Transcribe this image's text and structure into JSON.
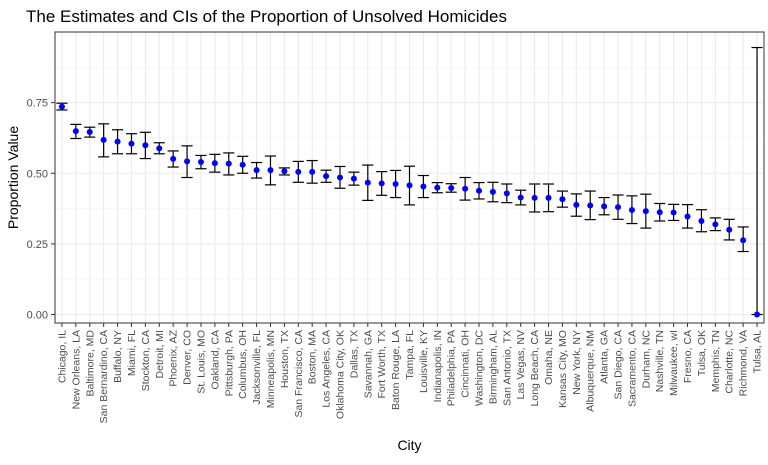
{
  "chart_data": {
    "type": "scatter",
    "title": "The Estimates and CIs of the Proportion of Unsolved Homicides",
    "xlabel": "City",
    "ylabel": "Proportion Value",
    "ylim": [
      -0.03,
      1.0
    ],
    "y_ticks": [
      0.0,
      0.25,
      0.5,
      0.75
    ],
    "y_tick_labels": [
      "0.00",
      "0.25",
      "0.50",
      "0.75"
    ],
    "grid": true,
    "legend": "none",
    "point_color": "#0000ff",
    "errorbar_color": "#000000",
    "categories": [
      "Chicago, IL",
      "New Orleans, LA",
      "Baltimore, MD",
      "San Bernardino, CA",
      "Buffalo, NY",
      "Miami, FL",
      "Stockton, CA",
      "Detroit, MI",
      "Phoenix, AZ",
      "Denver, CO",
      "St. Louis, MO",
      "Oakland, CA",
      "Pittsburgh, PA",
      "Columbus, OH",
      "Jacksonville, FL",
      "Minneapolis, MN",
      "Houston, TX",
      "San Francisco, CA",
      "Boston, MA",
      "Los Angeles, CA",
      "Oklahoma City, OK",
      "Dallas, TX",
      "Savannah, GA",
      "Fort Worth, TX",
      "Baton Rouge, LA",
      "Tampa, FL",
      "Louisville, KY",
      "Indianapolis, IN",
      "Philadelphia, PA",
      "Cincinnati, OH",
      "Washington, DC",
      "Birmingham, AL",
      "San Antonio, TX",
      "Las Vegas, NV",
      "Long Beach, CA",
      "Omaha, NE",
      "Kansas City, MO",
      "New York, NY",
      "Albuquerque, NM",
      "Atlanta, GA",
      "San Diego, CA",
      "Sacramento, CA",
      "Durham, NC",
      "Nashville, TN",
      "Milwaukee, wI",
      "Fresno, CA",
      "Tulsa, OK",
      "Memphis, TN",
      "Charlotte, NC",
      "Richmond, VA",
      "Tulsa, AL"
    ],
    "estimate": [
      0.736,
      0.649,
      0.646,
      0.618,
      0.612,
      0.605,
      0.599,
      0.588,
      0.551,
      0.542,
      0.54,
      0.536,
      0.534,
      0.53,
      0.511,
      0.511,
      0.507,
      0.505,
      0.505,
      0.49,
      0.485,
      0.481,
      0.467,
      0.464,
      0.462,
      0.457,
      0.453,
      0.449,
      0.448,
      0.445,
      0.438,
      0.434,
      0.429,
      0.414,
      0.413,
      0.413,
      0.408,
      0.388,
      0.386,
      0.383,
      0.38,
      0.37,
      0.366,
      0.362,
      0.361,
      0.347,
      0.331,
      0.319,
      0.3,
      0.263,
      0.0
    ],
    "lower": [
      0.724,
      0.623,
      0.628,
      0.558,
      0.569,
      0.569,
      0.552,
      0.569,
      0.522,
      0.485,
      0.516,
      0.504,
      0.494,
      0.5,
      0.483,
      0.459,
      0.494,
      0.468,
      0.465,
      0.468,
      0.447,
      0.458,
      0.404,
      0.422,
      0.414,
      0.388,
      0.414,
      0.431,
      0.433,
      0.405,
      0.409,
      0.399,
      0.396,
      0.388,
      0.363,
      0.364,
      0.38,
      0.348,
      0.336,
      0.353,
      0.337,
      0.322,
      0.306,
      0.331,
      0.333,
      0.306,
      0.293,
      0.297,
      0.264,
      0.223,
      0.0
    ],
    "upper": [
      0.748,
      0.673,
      0.663,
      0.675,
      0.654,
      0.64,
      0.645,
      0.608,
      0.579,
      0.597,
      0.563,
      0.567,
      0.572,
      0.56,
      0.538,
      0.561,
      0.519,
      0.542,
      0.545,
      0.511,
      0.524,
      0.504,
      0.529,
      0.506,
      0.51,
      0.525,
      0.492,
      0.467,
      0.463,
      0.485,
      0.467,
      0.468,
      0.462,
      0.44,
      0.462,
      0.462,
      0.437,
      0.427,
      0.437,
      0.414,
      0.423,
      0.42,
      0.426,
      0.393,
      0.39,
      0.389,
      0.371,
      0.342,
      0.337,
      0.31,
      0.945
    ]
  }
}
